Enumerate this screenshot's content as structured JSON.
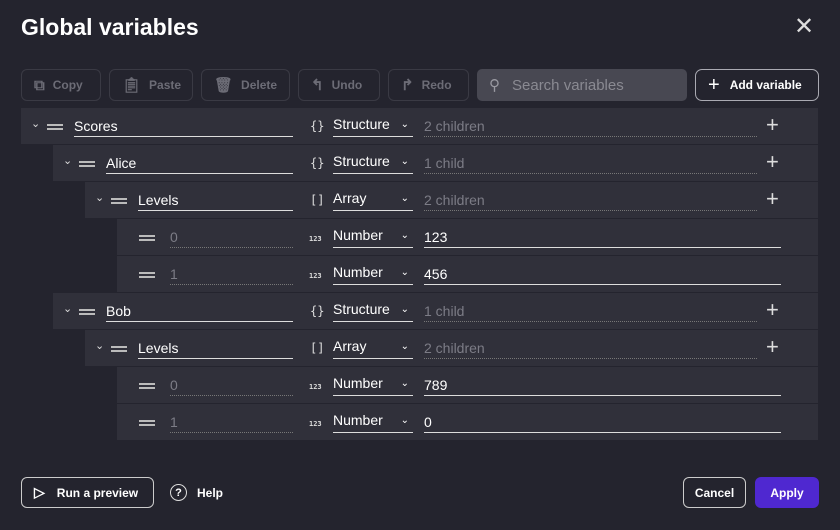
{
  "title": "Global variables",
  "toolbar": {
    "copy": "Copy",
    "paste": "Paste",
    "delete": "Delete",
    "undo": "Undo",
    "redo": "Redo",
    "search_placeholder": "Search variables",
    "add_variable": "Add variable"
  },
  "rows": [
    {
      "depth": 0,
      "name": "Scores",
      "type": "Structure",
      "type_icon": "{}",
      "value": "2 children",
      "expandable": true
    },
    {
      "depth": 1,
      "name": "Alice",
      "type": "Structure",
      "type_icon": "{}",
      "value": "1 child",
      "expandable": true
    },
    {
      "depth": 2,
      "name": "Levels",
      "type": "Array",
      "type_icon": "[]",
      "value": "2 children",
      "expandable": true
    },
    {
      "depth": 3,
      "name": "0",
      "type": "Number",
      "type_icon": "123",
      "value": "123",
      "expandable": false
    },
    {
      "depth": 3,
      "name": "1",
      "type": "Number",
      "type_icon": "123",
      "value": "456",
      "expandable": false
    },
    {
      "depth": 1,
      "name": "Bob",
      "type": "Structure",
      "type_icon": "{}",
      "value": "1 child",
      "expandable": true
    },
    {
      "depth": 2,
      "name": "Levels",
      "type": "Array",
      "type_icon": "[]",
      "value": "2 children",
      "expandable": true
    },
    {
      "depth": 3,
      "name": "0",
      "type": "Number",
      "type_icon": "123",
      "value": "789",
      "expandable": false
    },
    {
      "depth": 3,
      "name": "1",
      "type": "Number",
      "type_icon": "123",
      "value": "0",
      "expandable": false
    }
  ],
  "footer": {
    "run_preview": "Run a preview",
    "help": "Help",
    "cancel": "Cancel",
    "apply": "Apply"
  },
  "colors": {
    "accent": "#4f28d0",
    "background": "#24242e",
    "row": "#30303a"
  }
}
